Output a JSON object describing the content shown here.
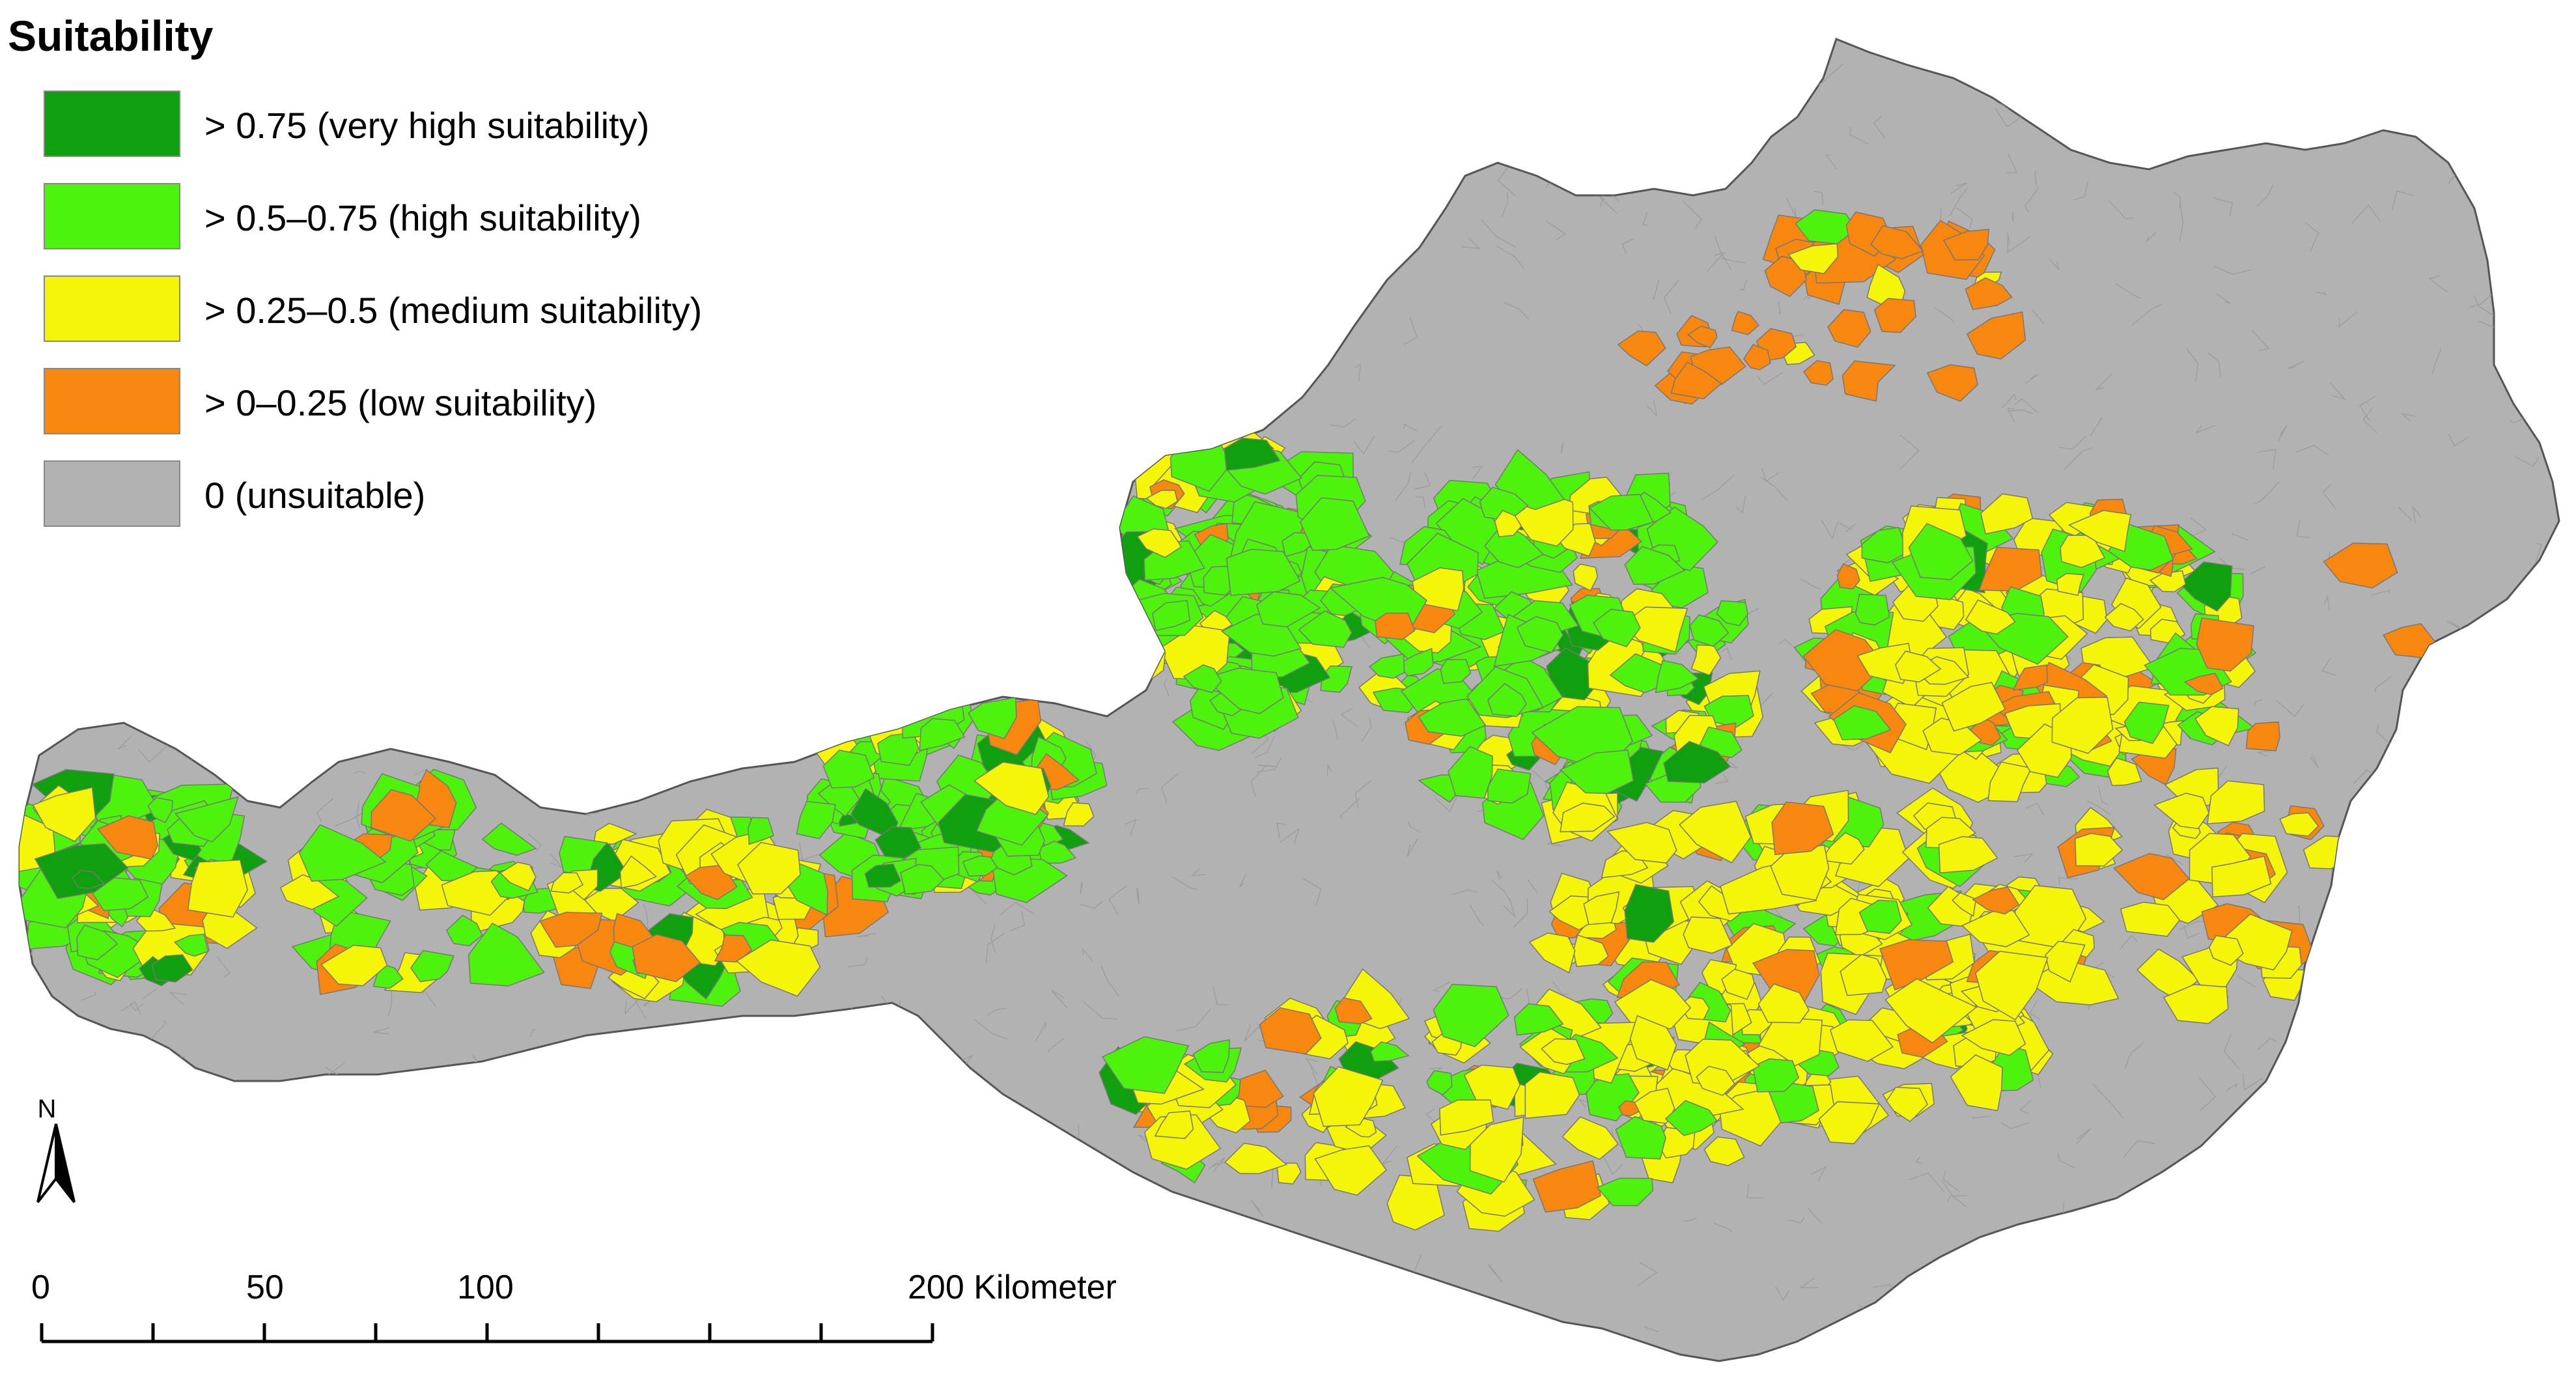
{
  "legend": {
    "title": "Suitability",
    "classes": [
      {
        "label": "> 0.75 (very high suitability)",
        "color": "#0f9f0f"
      },
      {
        "label": "> 0.5–0.75 (high suitability)",
        "color": "#4df20d"
      },
      {
        "label": "> 0.25–0.5 (medium suitability)",
        "color": "#f5f50a"
      },
      {
        "label": "> 0–0.25 (low suitability)",
        "color": "#f7870f"
      },
      {
        "label": "0 (unsuitable)",
        "color": "#b2b2b2"
      }
    ]
  },
  "north_arrow": {
    "label": "N"
  },
  "scale_bar": {
    "ticks": [
      "0",
      "50",
      "100",
      "200 Kilometer"
    ]
  },
  "colors": {
    "very_high": "#0f9f0f",
    "high": "#4df20d",
    "medium": "#f5f50a",
    "low": "#f7870f",
    "unsuitable": "#b2b2b2",
    "boundary": "#777777"
  }
}
